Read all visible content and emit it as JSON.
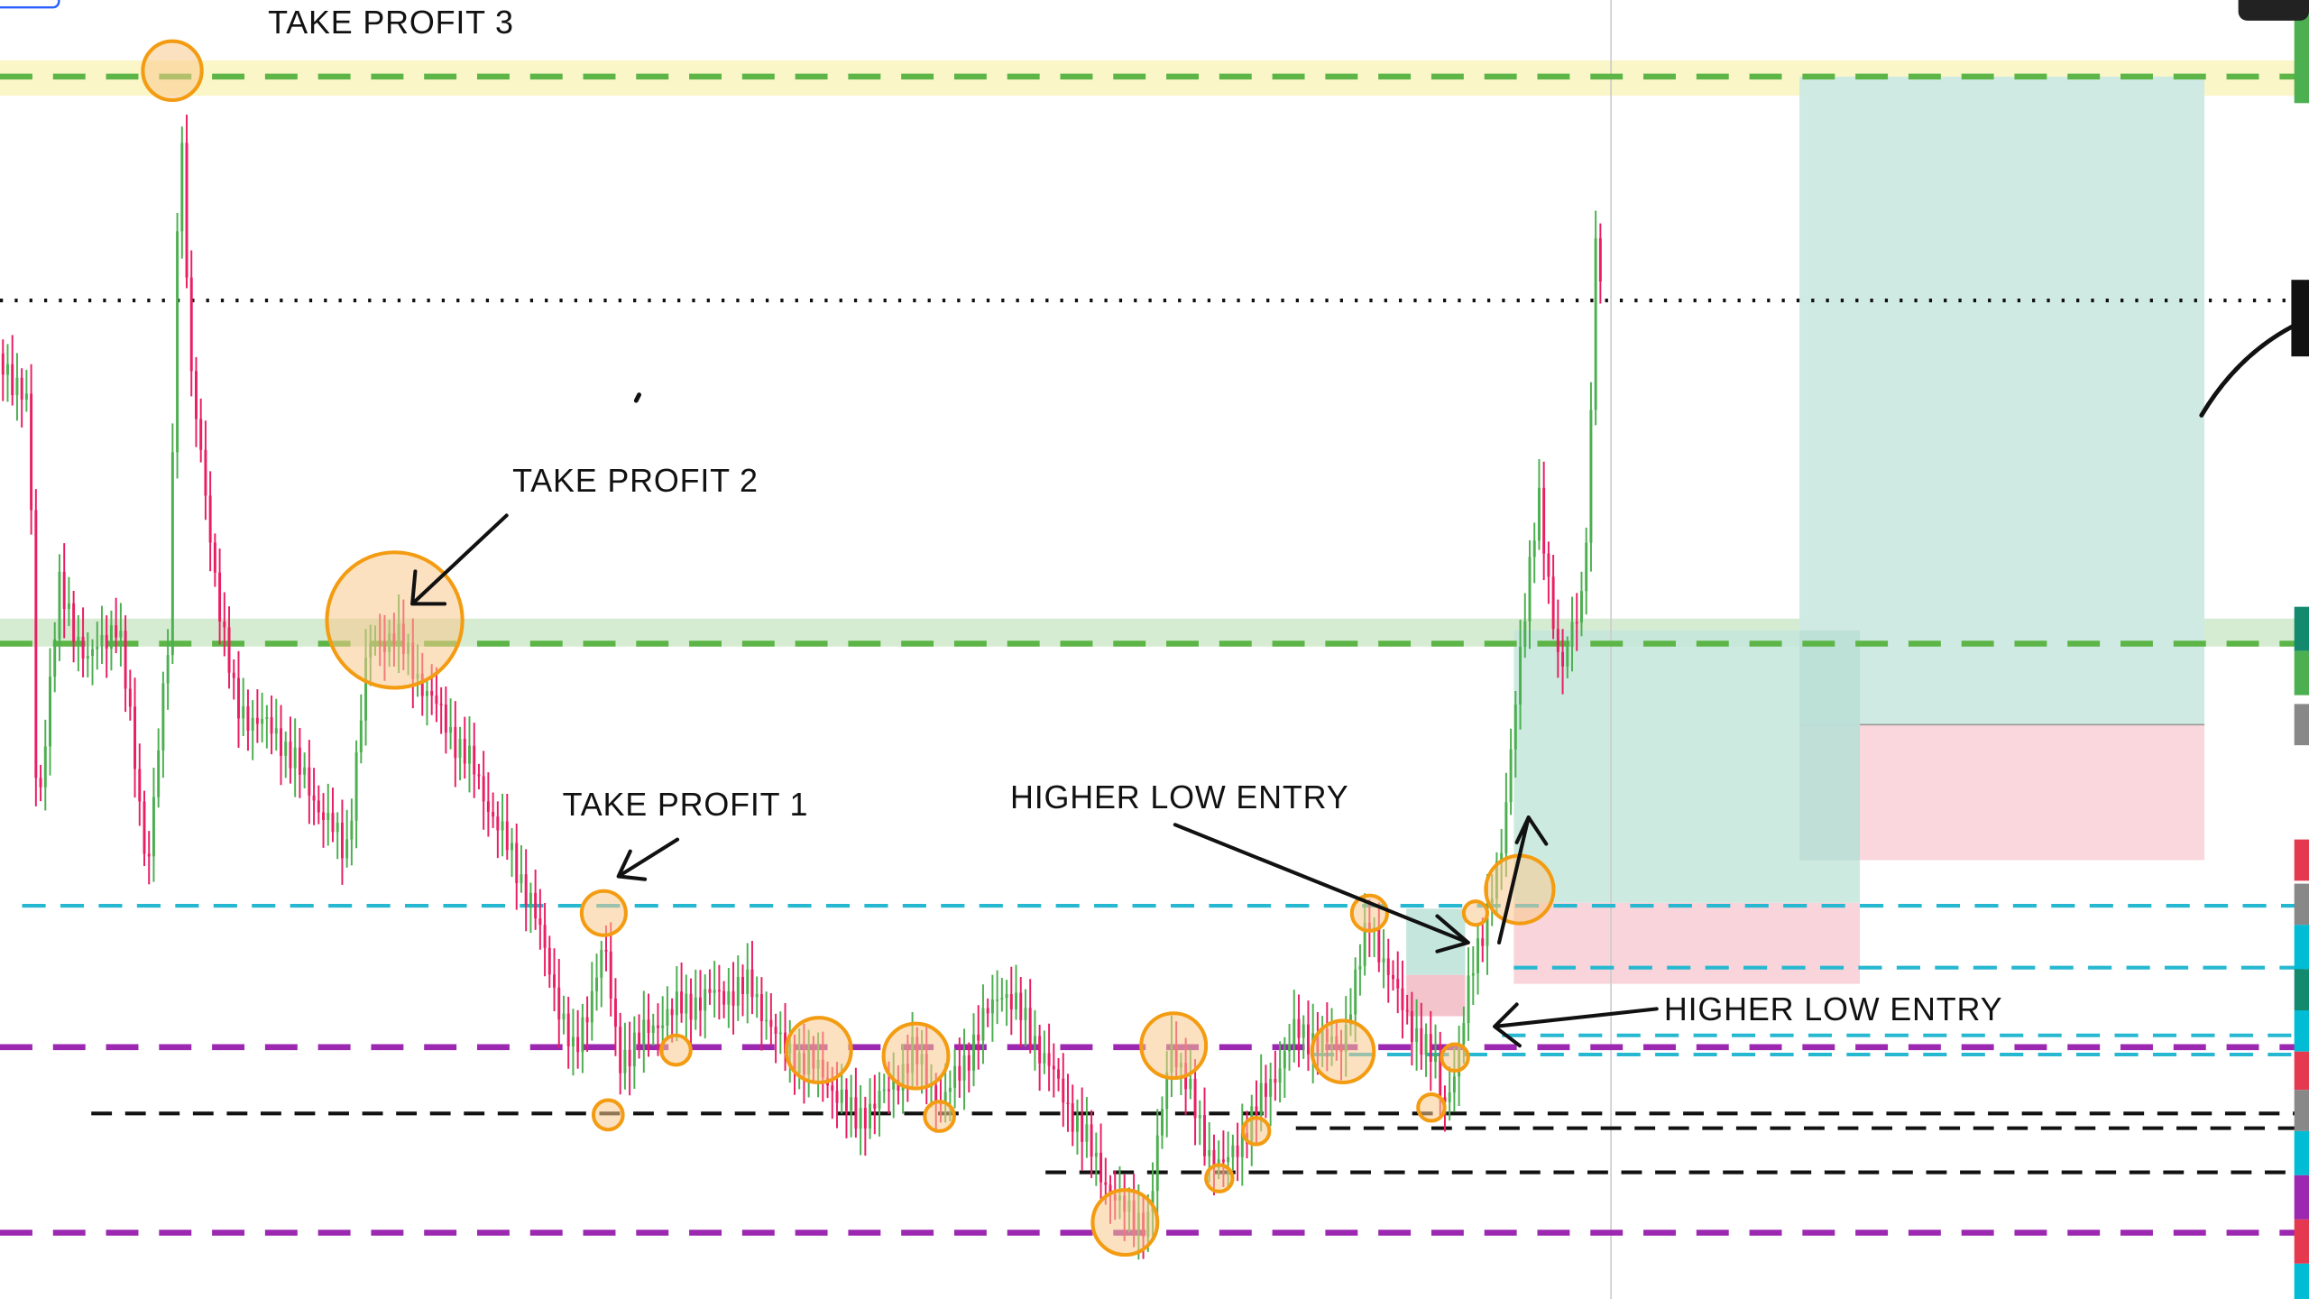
{
  "annotations": [
    {
      "label": "TAKE PROFIT 3"
    },
    {
      "label": "TAKE PROFIT 2"
    },
    {
      "label": "TAKE PROFIT 1"
    },
    {
      "label": "HIGHER LOW ENTRY"
    },
    {
      "label": "HIGHER LOW ENTRY"
    }
  ]
}
